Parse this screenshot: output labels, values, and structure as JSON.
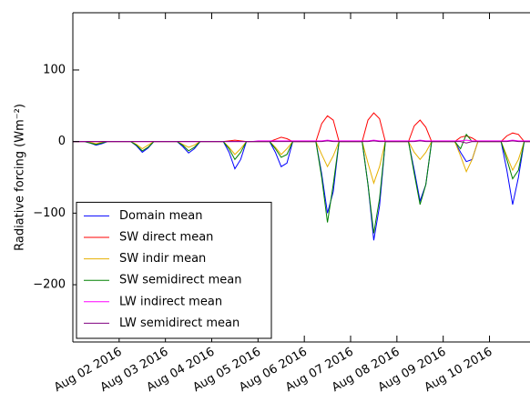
{
  "chart_data": {
    "type": "line",
    "ylabel": "Radiative forcing (Wm⁻²)",
    "x": [
      "2016-08-01T00:00",
      "2016-08-01T03:00",
      "2016-08-01T06:00",
      "2016-08-01T09:00",
      "2016-08-01T12:00",
      "2016-08-01T15:00",
      "2016-08-01T18:00",
      "2016-08-01T21:00",
      "2016-08-02T00:00",
      "2016-08-02T03:00",
      "2016-08-02T06:00",
      "2016-08-02T09:00",
      "2016-08-02T12:00",
      "2016-08-02T15:00",
      "2016-08-02T18:00",
      "2016-08-02T21:00",
      "2016-08-03T00:00",
      "2016-08-03T03:00",
      "2016-08-03T06:00",
      "2016-08-03T09:00",
      "2016-08-03T12:00",
      "2016-08-03T15:00",
      "2016-08-03T18:00",
      "2016-08-03T21:00",
      "2016-08-04T00:00",
      "2016-08-04T03:00",
      "2016-08-04T06:00",
      "2016-08-04T09:00",
      "2016-08-04T12:00",
      "2016-08-04T15:00",
      "2016-08-04T18:00",
      "2016-08-04T21:00",
      "2016-08-05T00:00",
      "2016-08-05T03:00",
      "2016-08-05T06:00",
      "2016-08-05T09:00",
      "2016-08-05T12:00",
      "2016-08-05T15:00",
      "2016-08-05T18:00",
      "2016-08-05T21:00",
      "2016-08-06T00:00",
      "2016-08-06T03:00",
      "2016-08-06T06:00",
      "2016-08-06T09:00",
      "2016-08-06T12:00",
      "2016-08-06T15:00",
      "2016-08-06T18:00",
      "2016-08-06T21:00",
      "2016-08-07T00:00",
      "2016-08-07T03:00",
      "2016-08-07T06:00",
      "2016-08-07T09:00",
      "2016-08-07T12:00",
      "2016-08-07T15:00",
      "2016-08-07T18:00",
      "2016-08-07T21:00",
      "2016-08-08T00:00",
      "2016-08-08T03:00",
      "2016-08-08T06:00",
      "2016-08-08T09:00",
      "2016-08-08T12:00",
      "2016-08-08T15:00",
      "2016-08-08T18:00",
      "2016-08-08T21:00",
      "2016-08-09T00:00",
      "2016-08-09T03:00",
      "2016-08-09T06:00",
      "2016-08-09T09:00",
      "2016-08-09T12:00",
      "2016-08-09T15:00",
      "2016-08-09T18:00",
      "2016-08-09T21:00",
      "2016-08-10T00:00",
      "2016-08-10T03:00",
      "2016-08-10T06:00",
      "2016-08-10T09:00",
      "2016-08-10T12:00",
      "2016-08-10T15:00",
      "2016-08-10T18:00",
      "2016-08-10T21:00"
    ],
    "series": [
      {
        "name": "Domain mean",
        "color": "#0000ff",
        "values": [
          0,
          0,
          0,
          -2,
          -5,
          -3,
          0,
          0,
          0,
          0,
          0,
          -6,
          -15,
          -9,
          0,
          0,
          0,
          0,
          0,
          -7,
          -16,
          -10,
          0,
          0,
          0,
          0,
          0,
          -15,
          -38,
          -25,
          0,
          0,
          0,
          0,
          0,
          -15,
          -35,
          -30,
          0,
          0,
          0,
          0,
          0,
          -45,
          -100,
          -70,
          0,
          0,
          0,
          0,
          0,
          -60,
          -138,
          -90,
          0,
          0,
          0,
          0,
          0,
          -40,
          -83,
          -60,
          0,
          0,
          0,
          0,
          0,
          -15,
          -28,
          -25,
          0,
          0,
          0,
          0,
          0,
          -40,
          -88,
          -50,
          0,
          0
        ]
      },
      {
        "name": "SW direct mean",
        "color": "#ff0000",
        "values": [
          0,
          0,
          0,
          0,
          0,
          0,
          0,
          0,
          0,
          0,
          0,
          0,
          0,
          0,
          0,
          0,
          0,
          0,
          0,
          0,
          0,
          0,
          0,
          0,
          0,
          0,
          0,
          1,
          2,
          1,
          0,
          0,
          0,
          0,
          0,
          3,
          6,
          4,
          0,
          0,
          0,
          0,
          0,
          25,
          36,
          30,
          0,
          0,
          0,
          0,
          0,
          30,
          40,
          32,
          0,
          0,
          0,
          0,
          0,
          22,
          30,
          20,
          0,
          0,
          0,
          0,
          0,
          6,
          8,
          5,
          0,
          0,
          0,
          0,
          0,
          8,
          12,
          10,
          0,
          0
        ]
      },
      {
        "name": "SW indir mean",
        "color": "#e6b000",
        "values": [
          0,
          0,
          0,
          -1,
          -3,
          -1,
          0,
          0,
          0,
          0,
          0,
          -4,
          -10,
          -5,
          0,
          0,
          0,
          0,
          0,
          -4,
          -8,
          -5,
          0,
          0,
          0,
          0,
          0,
          -8,
          -18,
          -10,
          0,
          0,
          0,
          0,
          0,
          -8,
          -18,
          -10,
          0,
          0,
          0,
          0,
          0,
          -18,
          -35,
          -20,
          0,
          0,
          0,
          0,
          0,
          -30,
          -58,
          -35,
          0,
          0,
          0,
          0,
          0,
          -15,
          -25,
          -15,
          0,
          0,
          0,
          0,
          0,
          -20,
          -42,
          -25,
          0,
          0,
          0,
          0,
          0,
          -20,
          -40,
          -25,
          0,
          0
        ]
      },
      {
        "name": "SW semidirect mean",
        "color": "#008000",
        "values": [
          0,
          0,
          0,
          -2,
          -4,
          -2,
          0,
          0,
          0,
          0,
          0,
          -5,
          -13,
          -8,
          0,
          0,
          0,
          0,
          0,
          -5,
          -13,
          -8,
          0,
          0,
          0,
          0,
          0,
          -10,
          -25,
          -15,
          0,
          0,
          0,
          0,
          0,
          -10,
          -22,
          -18,
          0,
          0,
          0,
          0,
          0,
          -50,
          -113,
          -60,
          0,
          0,
          0,
          0,
          0,
          -60,
          -128,
          -80,
          0,
          0,
          0,
          0,
          0,
          -45,
          -88,
          -60,
          0,
          0,
          0,
          0,
          0,
          -10,
          10,
          0,
          0,
          0,
          0,
          0,
          0,
          -25,
          -52,
          -40,
          0,
          0
        ]
      },
      {
        "name": "LW indirect mean",
        "color": "#ff00ff",
        "values": [
          0,
          0,
          0,
          0,
          0,
          0,
          0,
          0,
          0,
          0,
          0,
          0,
          0,
          0,
          0,
          0,
          0,
          0,
          0,
          0,
          0,
          0,
          0,
          0,
          0,
          0,
          0,
          0,
          0,
          0,
          0,
          0,
          1,
          1,
          1,
          1,
          1,
          1,
          1,
          1,
          1,
          1,
          1,
          1,
          2,
          1,
          1,
          1,
          1,
          1,
          1,
          1,
          2,
          1,
          1,
          1,
          1,
          1,
          1,
          1,
          2,
          1,
          1,
          1,
          1,
          1,
          1,
          1,
          2,
          1,
          1,
          1,
          1,
          1,
          1,
          1,
          2,
          1,
          1,
          1
        ]
      },
      {
        "name": "LW semidirect mean",
        "color": "#800080",
        "values": [
          0,
          0,
          0,
          0,
          0,
          0,
          0,
          0,
          0,
          0,
          0,
          0,
          0,
          0,
          0,
          0,
          0,
          0,
          0,
          0,
          0,
          0,
          0,
          0,
          0,
          0,
          0,
          0,
          0,
          0,
          0,
          0,
          0,
          0,
          0,
          0,
          0,
          0,
          0,
          0,
          0,
          0,
          0,
          0,
          1,
          0,
          0,
          0,
          0,
          0,
          0,
          0,
          1,
          0,
          0,
          0,
          0,
          0,
          0,
          0,
          1,
          0,
          0,
          0,
          0,
          0,
          0,
          0,
          -2,
          0,
          0,
          0,
          0,
          0,
          0,
          0,
          1,
          0,
          0,
          0
        ]
      }
    ],
    "xlim": [
      "2016-08-01T00:00",
      "2016-08-10T21:00"
    ],
    "xticks": [
      {
        "value": "2016-08-02T00:00",
        "label": "Aug 02 2016"
      },
      {
        "value": "2016-08-03T00:00",
        "label": "Aug 03 2016"
      },
      {
        "value": "2016-08-04T00:00",
        "label": "Aug 04 2016"
      },
      {
        "value": "2016-08-05T00:00",
        "label": "Aug 05 2016"
      },
      {
        "value": "2016-08-06T00:00",
        "label": "Aug 06 2016"
      },
      {
        "value": "2016-08-07T00:00",
        "label": "Aug 07 2016"
      },
      {
        "value": "2016-08-08T00:00",
        "label": "Aug 08 2016"
      },
      {
        "value": "2016-08-09T00:00",
        "label": "Aug 09 2016"
      },
      {
        "value": "2016-08-10T00:00",
        "label": "Aug 10 2016"
      }
    ],
    "ylim": [
      -280,
      180
    ],
    "yticks": [
      {
        "value": -200,
        "label": "−200"
      },
      {
        "value": -100,
        "label": "−100"
      },
      0,
      100
    ],
    "legend": "lower left"
  }
}
